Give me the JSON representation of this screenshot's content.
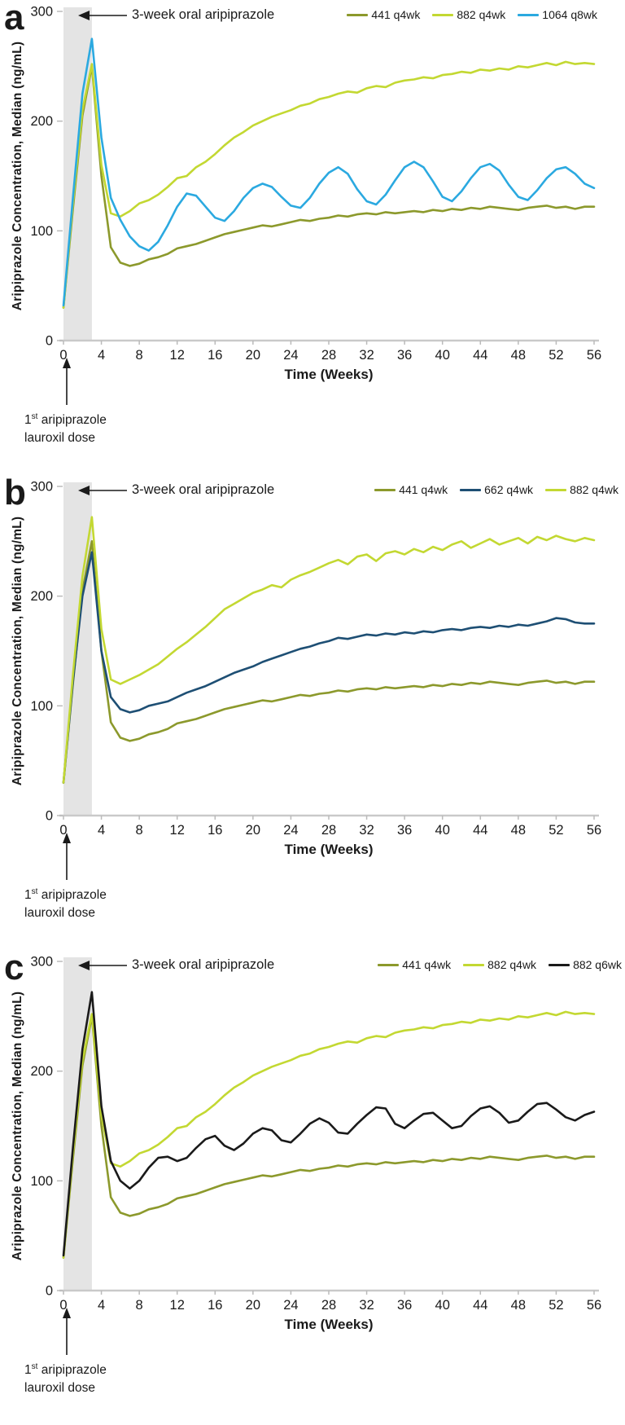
{
  "figure_text": {
    "y_axis_label": "Aripiprazole Concentration, Median (ng/mL)",
    "x_axis_label": "Time (Weeks)",
    "oral_phase_annotation": "3-week oral aripiprazole",
    "dose_note_num": "1",
    "dose_note_sup": "st",
    "dose_note_line1_rest": " aripiprazole",
    "dose_note_line2": "lauroxil dose"
  },
  "panels": [
    {
      "letter": "a"
    },
    {
      "letter": "b"
    },
    {
      "letter": "c"
    }
  ],
  "colors": {
    "band": "#e4e4e4",
    "axis_line": "#c9c9c9",
    "tick": "#bbbbbb",
    "text": "#1a1a1a",
    "arrow": "#1a1a1a"
  },
  "chart_data": [
    {
      "type": "line",
      "panel": "a",
      "xlabel": "Time (Weeks)",
      "ylabel": "Aripiprazole Concentration, Median (ng/mL)",
      "xlim": [
        0,
        56
      ],
      "ylim": [
        0,
        300
      ],
      "x_ticks": [
        0,
        4,
        8,
        12,
        16,
        20,
        24,
        28,
        32,
        36,
        40,
        44,
        48,
        52,
        56
      ],
      "y_ticks": [
        0,
        100,
        200,
        300
      ],
      "x_step_weeks": 1,
      "grid": false,
      "legend_position": "top-right",
      "shaded_region": {
        "x0": 0,
        "x1": 3,
        "label": "3-week oral aripiprazole"
      },
      "series": [
        {
          "name": "441 q4wk",
          "color": "#8c992c",
          "values": [
            30,
            120,
            205,
            250,
            150,
            85,
            71,
            68,
            70,
            74,
            76,
            79,
            84,
            86,
            88,
            91,
            94,
            97,
            99,
            101,
            103,
            105,
            104,
            106,
            108,
            110,
            109,
            111,
            112,
            114,
            113,
            115,
            116,
            115,
            117,
            116,
            117,
            118,
            117,
            119,
            118,
            120,
            119,
            121,
            120,
            122,
            121,
            120,
            119,
            121,
            122,
            123,
            121,
            122,
            120,
            122,
            122
          ]
        },
        {
          "name": "882 q4wk",
          "color": "#c3d832",
          "values": [
            30,
            125,
            210,
            252,
            160,
            116,
            113,
            118,
            125,
            128,
            133,
            140,
            148,
            150,
            158,
            163,
            170,
            178,
            185,
            190,
            196,
            200,
            204,
            207,
            210,
            214,
            216,
            220,
            222,
            225,
            227,
            226,
            230,
            232,
            231,
            235,
            237,
            238,
            240,
            239,
            242,
            243,
            245,
            244,
            247,
            246,
            248,
            247,
            250,
            249,
            251,
            253,
            251,
            254,
            252,
            253,
            252
          ]
        },
        {
          "name": "1064 q8wk",
          "color": "#2ba9e0",
          "values": [
            32,
            130,
            225,
            275,
            185,
            130,
            110,
            95,
            86,
            82,
            90,
            105,
            122,
            134,
            132,
            122,
            112,
            109,
            118,
            130,
            139,
            143,
            140,
            131,
            123,
            121,
            130,
            143,
            153,
            158,
            152,
            138,
            127,
            124,
            133,
            146,
            158,
            163,
            158,
            145,
            131,
            127,
            136,
            148,
            158,
            161,
            155,
            142,
            131,
            128,
            137,
            148,
            156,
            158,
            152,
            143,
            139
          ]
        }
      ]
    },
    {
      "type": "line",
      "panel": "b",
      "xlabel": "Time (Weeks)",
      "ylabel": "Aripiprazole Concentration, Median (ng/mL)",
      "xlim": [
        0,
        56
      ],
      "ylim": [
        0,
        300
      ],
      "x_ticks": [
        0,
        4,
        8,
        12,
        16,
        20,
        24,
        28,
        32,
        36,
        40,
        44,
        48,
        52,
        56
      ],
      "y_ticks": [
        0,
        100,
        200,
        300
      ],
      "x_step_weeks": 1,
      "grid": false,
      "legend_position": "top-right",
      "shaded_region": {
        "x0": 0,
        "x1": 3,
        "label": "3-week oral aripiprazole"
      },
      "series": [
        {
          "name": "441 q4wk",
          "color": "#8c992c",
          "values": [
            30,
            120,
            205,
            250,
            150,
            85,
            71,
            68,
            70,
            74,
            76,
            79,
            84,
            86,
            88,
            91,
            94,
            97,
            99,
            101,
            103,
            105,
            104,
            106,
            108,
            110,
            109,
            111,
            112,
            114,
            113,
            115,
            116,
            115,
            117,
            116,
            117,
            118,
            117,
            119,
            118,
            120,
            119,
            121,
            120,
            122,
            121,
            120,
            119,
            121,
            122,
            123,
            121,
            122,
            120,
            122,
            122
          ]
        },
        {
          "name": "662 q4wk",
          "color": "#1e4f74",
          "values": [
            30,
            122,
            200,
            240,
            150,
            108,
            97,
            94,
            96,
            100,
            102,
            104,
            108,
            112,
            115,
            118,
            122,
            126,
            130,
            133,
            136,
            140,
            143,
            146,
            149,
            152,
            154,
            157,
            159,
            162,
            161,
            163,
            165,
            164,
            166,
            165,
            167,
            166,
            168,
            167,
            169,
            170,
            169,
            171,
            172,
            171,
            173,
            172,
            174,
            173,
            175,
            177,
            180,
            179,
            176,
            175,
            175
          ]
        },
        {
          "name": "882 q4wk",
          "color": "#c3d832",
          "values": [
            30,
            128,
            218,
            272,
            170,
            124,
            120,
            124,
            128,
            133,
            138,
            145,
            152,
            158,
            165,
            172,
            180,
            188,
            193,
            198,
            203,
            206,
            210,
            208,
            215,
            219,
            222,
            226,
            230,
            233,
            229,
            236,
            238,
            232,
            239,
            241,
            238,
            243,
            240,
            245,
            242,
            247,
            250,
            244,
            248,
            252,
            247,
            250,
            253,
            248,
            254,
            251,
            255,
            252,
            250,
            253,
            251
          ]
        }
      ]
    },
    {
      "type": "line",
      "panel": "c",
      "xlabel": "Time (Weeks)",
      "ylabel": "Aripiprazole Concentration, Median (ng/mL)",
      "xlim": [
        0,
        56
      ],
      "ylim": [
        0,
        300
      ],
      "x_ticks": [
        0,
        4,
        8,
        12,
        16,
        20,
        24,
        28,
        32,
        36,
        40,
        44,
        48,
        52,
        56
      ],
      "y_ticks": [
        0,
        100,
        200,
        300
      ],
      "x_step_weeks": 1,
      "grid": false,
      "legend_position": "top-right",
      "shaded_region": {
        "x0": 0,
        "x1": 3,
        "label": "3-week oral aripiprazole"
      },
      "series": [
        {
          "name": "441 q4wk",
          "color": "#8c992c",
          "values": [
            30,
            120,
            205,
            250,
            150,
            85,
            71,
            68,
            70,
            74,
            76,
            79,
            84,
            86,
            88,
            91,
            94,
            97,
            99,
            101,
            103,
            105,
            104,
            106,
            108,
            110,
            109,
            111,
            112,
            114,
            113,
            115,
            116,
            115,
            117,
            116,
            117,
            118,
            117,
            119,
            118,
            120,
            119,
            121,
            120,
            122,
            121,
            120,
            119,
            121,
            122,
            123,
            121,
            122,
            120,
            122,
            122
          ]
        },
        {
          "name": "882 q4wk",
          "color": "#c3d832",
          "values": [
            30,
            125,
            210,
            252,
            160,
            116,
            113,
            118,
            125,
            128,
            133,
            140,
            148,
            150,
            158,
            163,
            170,
            178,
            185,
            190,
            196,
            200,
            204,
            207,
            210,
            214,
            216,
            220,
            222,
            225,
            227,
            226,
            230,
            232,
            231,
            235,
            237,
            238,
            240,
            239,
            242,
            243,
            245,
            244,
            247,
            246,
            248,
            247,
            250,
            249,
            251,
            253,
            251,
            254,
            252,
            253,
            252
          ]
        },
        {
          "name": "882 q6wk",
          "color": "#1a1a1a",
          "values": [
            32,
            130,
            220,
            272,
            168,
            118,
            100,
            93,
            100,
            112,
            121,
            122,
            118,
            121,
            130,
            138,
            141,
            132,
            128,
            134,
            143,
            148,
            146,
            137,
            135,
            143,
            152,
            157,
            153,
            144,
            143,
            152,
            160,
            167,
            166,
            152,
            148,
            155,
            161,
            162,
            155,
            148,
            150,
            159,
            166,
            168,
            162,
            153,
            155,
            163,
            170,
            171,
            165,
            158,
            155,
            160,
            163
          ]
        }
      ]
    }
  ]
}
